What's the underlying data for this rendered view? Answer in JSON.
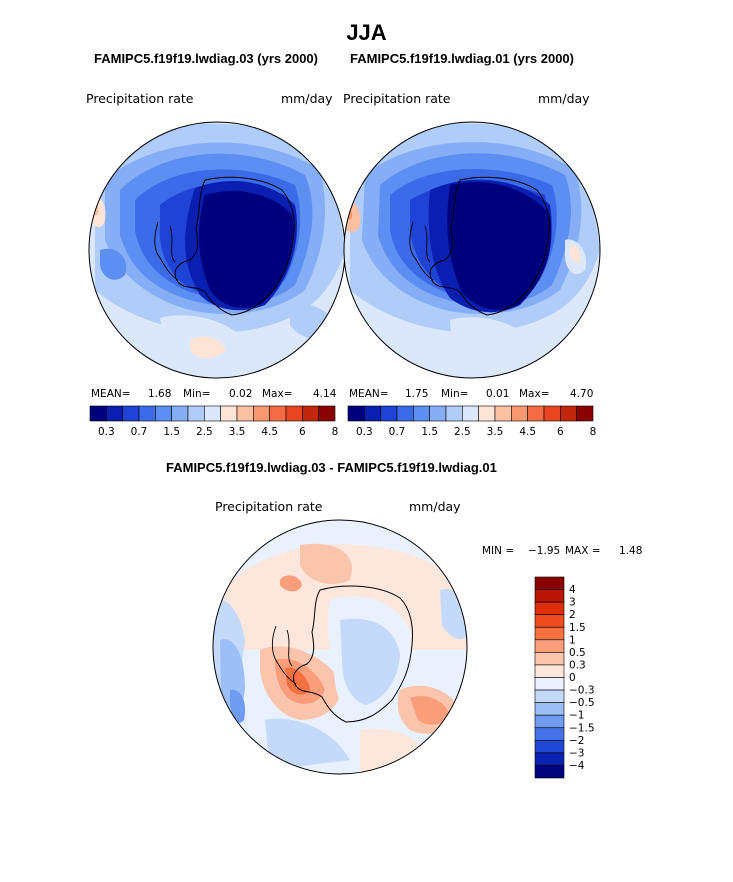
{
  "figure": {
    "title": "JJA",
    "left_label": "FAMIPC5.f19f19.lwdiag.03 (yrs 2000)",
    "right_label": "FAMIPC5.f19f19.lwdiag.01 (yrs 2000)",
    "diff_label": "FAMIPC5.f19f19.lwdiag.03 - FAMIPC5.f19f19.lwdiag.01"
  },
  "chart_data": [
    {
      "type": "heatmap",
      "projection": "south-polar-stereographic",
      "variable": "Precipitation rate",
      "units": "mm/day",
      "case": "FAMIPC5.f19f19.lwdiag.03 (yrs 2000)",
      "stats": {
        "mean_label": "MEAN=",
        "mean": "1.68",
        "min_label": "Min=",
        "min": "0.02",
        "max_label": "Max=",
        "max": "4.14"
      },
      "colorbar_ticks": [
        "0.3",
        "0.7",
        "1.5",
        "2.5",
        "3.5",
        "4.5",
        "6",
        "8"
      ]
    },
    {
      "type": "heatmap",
      "projection": "south-polar-stereographic",
      "variable": "Precipitation rate",
      "units": "mm/day",
      "case": "FAMIPC5.f19f19.lwdiag.01 (yrs 2000)",
      "stats": {
        "mean_label": "MEAN=",
        "mean": "1.75",
        "min_label": "Min=",
        "min": "0.01",
        "max_label": "Max=",
        "max": "4.70"
      },
      "colorbar_ticks": [
        "0.3",
        "0.7",
        "1.5",
        "2.5",
        "3.5",
        "4.5",
        "6",
        "8"
      ]
    },
    {
      "type": "heatmap",
      "projection": "south-polar-stereographic",
      "variable": "Precipitation rate",
      "units": "mm/day",
      "case": "FAMIPC5.f19f19.lwdiag.03 - FAMIPC5.f19f19.lwdiag.01",
      "stats": {
        "min_label": "MIN =",
        "min": "−1.95",
        "max_label": "MAX =",
        "max": "1.48"
      },
      "colorbar_ticks": [
        "4",
        "3",
        "2",
        "1.5",
        "1",
        "0.5",
        "0.3",
        "0",
        "−0.3",
        "−0.5",
        "−1",
        "−1.5",
        "−2",
        "−3",
        "−4"
      ]
    }
  ],
  "colors": {
    "abs_scale": [
      "#00007f",
      "#0a1fb0",
      "#1f43d6",
      "#3c6bea",
      "#5d8ff2",
      "#86aef6",
      "#b0cdfa",
      "#dbe8fc",
      "#fde4d6",
      "#fbc0a2",
      "#f89870",
      "#f46c45",
      "#e84620",
      "#c02607",
      "#8b0000"
    ],
    "diff_scale": [
      "#8b0000",
      "#b81505",
      "#dc2f0a",
      "#ee4b1e",
      "#f67040",
      "#f99d7b",
      "#fbc5ad",
      "#fde7dc",
      "#e8f1fd",
      "#c5dafb",
      "#9dbff8",
      "#6f9bf1",
      "#4572e6",
      "#1f48d6",
      "#0b22b4",
      "#00047f"
    ]
  }
}
